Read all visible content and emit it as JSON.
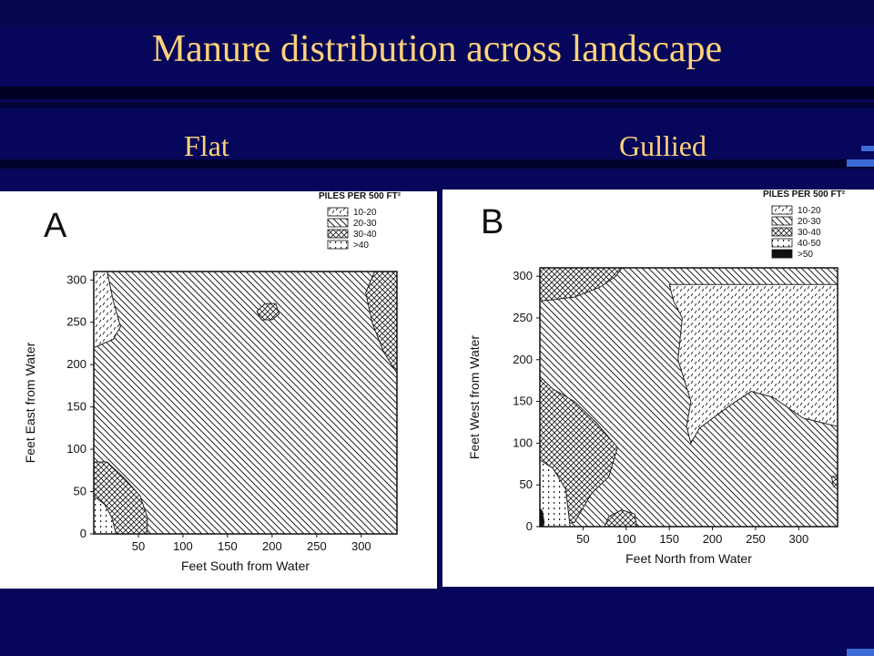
{
  "slide": {
    "title": "Manure distribution across landscape",
    "left_label": "Flat",
    "right_label": "Gullied",
    "colors": {
      "background": "#06065a",
      "title": "#ffd27a"
    }
  },
  "chart_data": [
    {
      "type": "heatmap",
      "panel": "A",
      "title": "A",
      "xlabel": "Feet South from Water",
      "ylabel": "Feet East from Water",
      "xlim": [
        0,
        340
      ],
      "ylim": [
        0,
        310
      ],
      "xticks": [
        50,
        100,
        150,
        200,
        250,
        300
      ],
      "yticks": [
        0,
        50,
        100,
        150,
        200,
        250,
        300
      ],
      "legend_title": "PILES PER 500 FT²",
      "legend_position": "top-right",
      "classes": [
        {
          "label": "10-20",
          "pattern": "dashes"
        },
        {
          "label": "20-30",
          "pattern": "diagonal"
        },
        {
          "label": "30-40",
          "pattern": "crosshatch"
        },
        {
          "label": ">40",
          "pattern": "dots"
        }
      ],
      "regions": [
        {
          "class": "20-30",
          "points": [
            [
              0,
              0
            ],
            [
              340,
              0
            ],
            [
              340,
              310
            ],
            [
              0,
              310
            ]
          ]
        },
        {
          "class": "10-20",
          "points": [
            [
              0,
              310
            ],
            [
              15,
              310
            ],
            [
              22,
              275
            ],
            [
              30,
              245
            ],
            [
              22,
              230
            ],
            [
              0,
              220
            ]
          ]
        },
        {
          "class": "30-40",
          "points": [
            [
              315,
              310
            ],
            [
              340,
              310
            ],
            [
              340,
              190
            ],
            [
              325,
              215
            ],
            [
              312,
              250
            ],
            [
              305,
              285
            ]
          ]
        },
        {
          "class": "30-40",
          "points": [
            [
              183,
              263
            ],
            [
              192,
              272
            ],
            [
              204,
              272
            ],
            [
              208,
              260
            ],
            [
              200,
              253
            ],
            [
              188,
              253
            ]
          ]
        },
        {
          "class": "30-40",
          "points": [
            [
              0,
              0
            ],
            [
              60,
              0
            ],
            [
              60,
              20
            ],
            [
              52,
              45
            ],
            [
              35,
              65
            ],
            [
              15,
              85
            ],
            [
              0,
              85
            ]
          ]
        },
        {
          "class": ">40",
          "points": [
            [
              0,
              0
            ],
            [
              25,
              0
            ],
            [
              20,
              20
            ],
            [
              12,
              35
            ],
            [
              0,
              45
            ]
          ]
        }
      ]
    },
    {
      "type": "heatmap",
      "panel": "B",
      "title": "B",
      "xlabel": "Feet North from Water",
      "ylabel": "Feet West from Water",
      "xlim": [
        0,
        345
      ],
      "ylim": [
        0,
        310
      ],
      "xticks": [
        50,
        100,
        150,
        200,
        250,
        300
      ],
      "yticks": [
        0,
        50,
        100,
        150,
        200,
        250,
        300
      ],
      "legend_title": "PILES PER 500 FT²",
      "legend_position": "top-right",
      "classes": [
        {
          "label": "10-20",
          "pattern": "dashes"
        },
        {
          "label": "20-30",
          "pattern": "diagonal"
        },
        {
          "label": "30-40",
          "pattern": "crosshatch"
        },
        {
          "label": "40-50",
          "pattern": "dots"
        },
        {
          "label": ">50",
          "pattern": "solid"
        }
      ],
      "regions": [
        {
          "class": "20-30",
          "points": [
            [
              0,
              0
            ],
            [
              345,
              0
            ],
            [
              345,
              310
            ],
            [
              0,
              310
            ]
          ]
        },
        {
          "class": "30-40",
          "points": [
            [
              0,
              310
            ],
            [
              95,
              310
            ],
            [
              88,
              300
            ],
            [
              70,
              287
            ],
            [
              40,
              275
            ],
            [
              0,
              270
            ]
          ]
        },
        {
          "class": "10-20",
          "points": [
            [
              150,
              290
            ],
            [
              345,
              290
            ],
            [
              345,
              120
            ],
            [
              305,
              130
            ],
            [
              270,
              155
            ],
            [
              245,
              162
            ],
            [
              220,
              145
            ],
            [
              185,
              118
            ],
            [
              175,
              100
            ],
            [
              170,
              120
            ],
            [
              175,
              150
            ],
            [
              160,
              200
            ],
            [
              165,
              250
            ],
            [
              155,
              270
            ]
          ]
        },
        {
          "class": "30-40",
          "points": [
            [
              0,
              180
            ],
            [
              15,
              165
            ],
            [
              40,
              150
            ],
            [
              65,
              125
            ],
            [
              90,
              95
            ],
            [
              80,
              60
            ],
            [
              60,
              40
            ],
            [
              40,
              5
            ],
            [
              0,
              0
            ]
          ]
        },
        {
          "class": "40-50",
          "points": [
            [
              0,
              80
            ],
            [
              15,
              70
            ],
            [
              30,
              45
            ],
            [
              35,
              0
            ],
            [
              0,
              0
            ]
          ]
        },
        {
          "class": "30-40",
          "points": [
            [
              75,
              0
            ],
            [
              112,
              0
            ],
            [
              110,
              15
            ],
            [
              95,
              20
            ],
            [
              80,
              12
            ]
          ]
        },
        {
          "class": "30-40",
          "points": [
            [
              338,
              60
            ],
            [
              345,
              60
            ],
            [
              345,
              45
            ],
            [
              340,
              48
            ]
          ]
        },
        {
          "class": ">50",
          "points": [
            [
              0,
              0
            ],
            [
              4,
              0
            ],
            [
              5,
              5
            ],
            [
              3,
              18
            ],
            [
              0,
              22
            ]
          ]
        }
      ]
    }
  ]
}
